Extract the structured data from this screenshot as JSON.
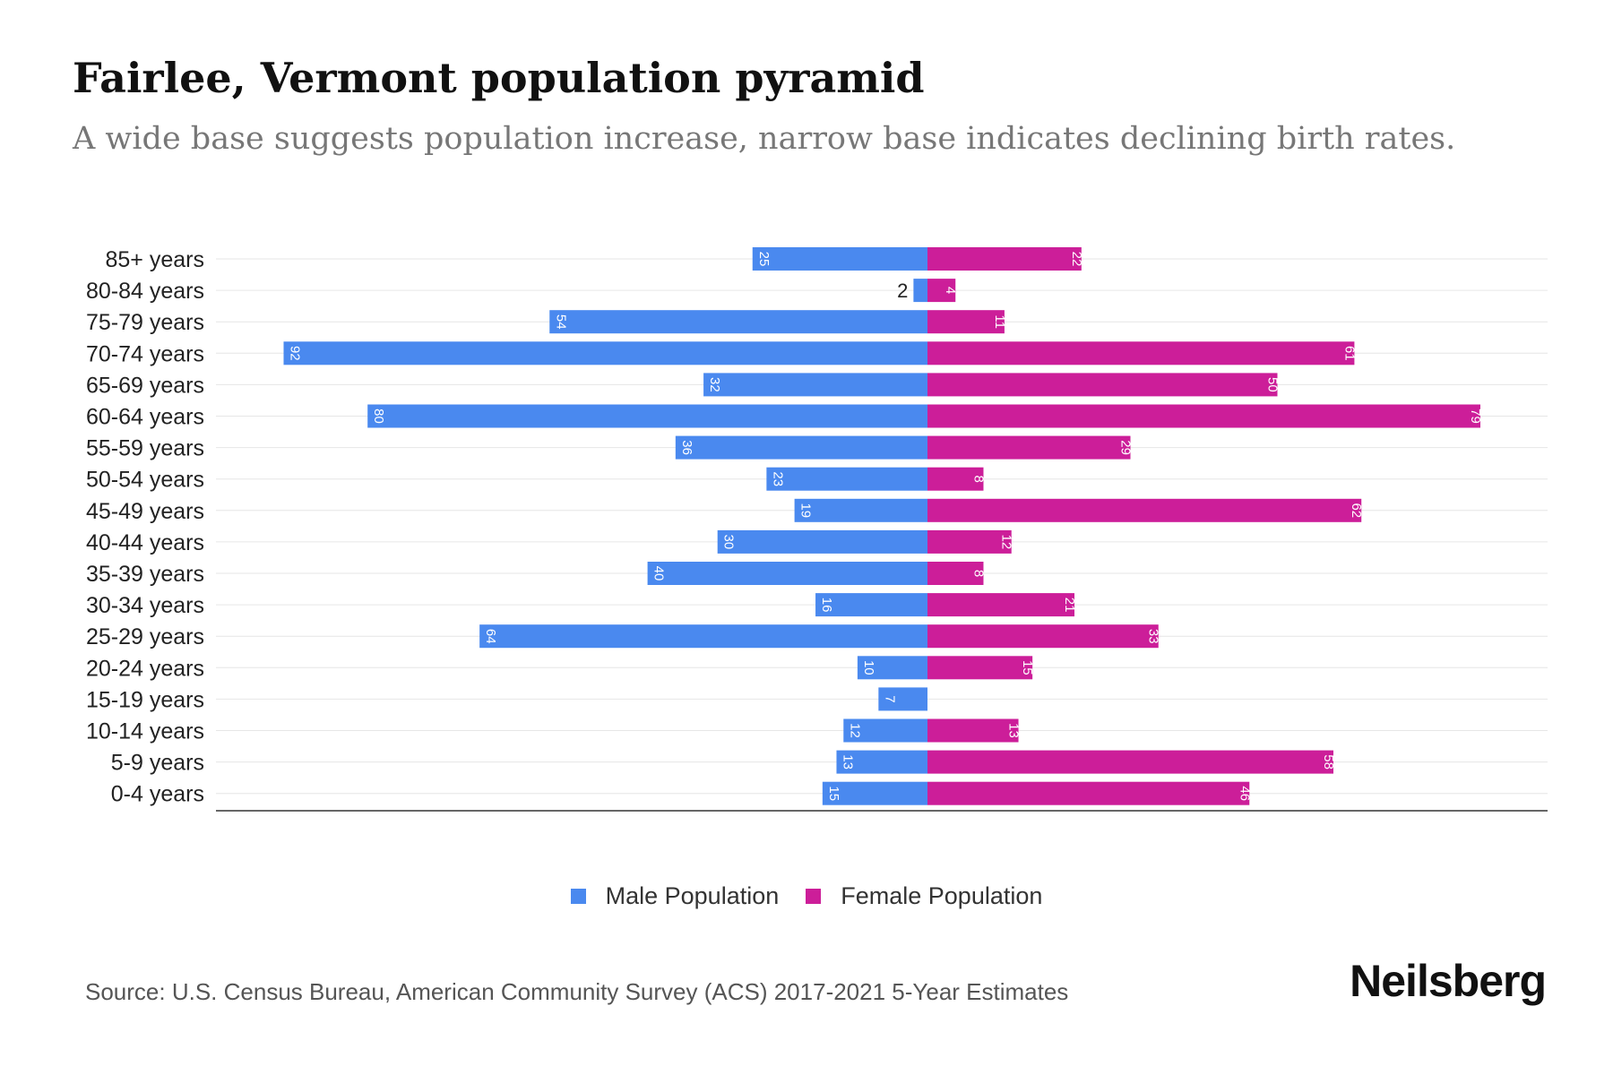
{
  "title": "Fairlee, Vermont population pyramid",
  "subtitle": "A wide base suggests population increase, narrow base indicates declining birth rates.",
  "legend": {
    "male": "Male Population",
    "female": "Female Population"
  },
  "source": "Source: U.S. Census Bureau, American Community Survey (ACS) 2017-2021 5-Year Estimates",
  "brand": "Neilsberg",
  "colors": {
    "male": "#4a89ef",
    "female": "#cc1e99",
    "grid": "#e6e6e6",
    "axis": "#333333"
  },
  "chart_data": {
    "type": "bar",
    "orientation": "horizontal-diverging",
    "title": "Fairlee, Vermont population pyramid",
    "categories": [
      "85+ years",
      "80-84 years",
      "75-79 years",
      "70-74 years",
      "65-69 years",
      "60-64 years",
      "55-59 years",
      "50-54 years",
      "45-49 years",
      "40-44 years",
      "35-39 years",
      "30-34 years",
      "25-29 years",
      "20-24 years",
      "15-19 years",
      "10-14 years",
      "5-9 years",
      "0-4 years"
    ],
    "series": [
      {
        "name": "Male Population",
        "values": [
          25,
          2,
          54,
          92,
          32,
          80,
          36,
          23,
          19,
          30,
          40,
          16,
          64,
          10,
          7,
          12,
          13,
          15
        ]
      },
      {
        "name": "Female Population",
        "values": [
          22,
          4,
          11,
          61,
          50,
          79,
          29,
          8,
          62,
          12,
          8,
          21,
          33,
          15,
          0,
          13,
          58,
          46
        ]
      }
    ],
    "xlim": [
      -95,
      95
    ],
    "legend_position": "bottom-center",
    "grid": true
  }
}
